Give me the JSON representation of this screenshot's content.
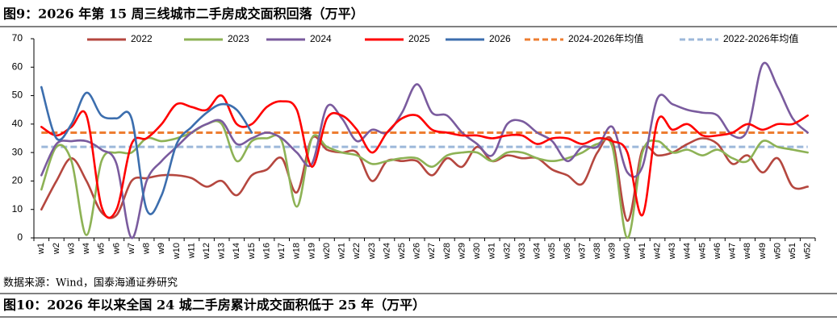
{
  "chart_data": {
    "type": "line",
    "title": "图9：2026 年第 15 周三线城市二手房成交面积回落（万平）",
    "categories": [
      "w1",
      "w2",
      "w3",
      "w4",
      "w5",
      "w6",
      "w7",
      "w8",
      "w9",
      "w10",
      "w11",
      "w12",
      "w13",
      "w14",
      "w15",
      "w16",
      "w17",
      "w18",
      "w19",
      "w20",
      "w21",
      "w22",
      "w23",
      "w24",
      "w25",
      "w26",
      "w27",
      "w28",
      "w29",
      "w30",
      "w31",
      "w32",
      "w33",
      "w34",
      "w35",
      "w36",
      "w37",
      "w38",
      "w39",
      "w40",
      "w41",
      "w42",
      "w43",
      "w44",
      "w45",
      "w46",
      "w47",
      "w48",
      "w49",
      "w50",
      "w51",
      "w52"
    ],
    "series": [
      {
        "name": "2022",
        "color": "#b5473f",
        "values": [
          10,
          20,
          28,
          20,
          9,
          8,
          20,
          21,
          22,
          22,
          21,
          18,
          20,
          15,
          22,
          24,
          28,
          16,
          35,
          31,
          30,
          30,
          20,
          27,
          27,
          27,
          22,
          28,
          25,
          32,
          27,
          29,
          28,
          28,
          24,
          22,
          19,
          30,
          34,
          6,
          31,
          29,
          30,
          33,
          35,
          33,
          26,
          29,
          23,
          28,
          18,
          18
        ]
      },
      {
        "name": "2023",
        "color": "#8db255",
        "values": [
          17,
          32,
          27,
          1,
          27,
          30,
          30,
          35,
          34,
          35,
          37,
          40,
          40,
          27,
          34,
          35,
          34,
          11,
          35,
          32,
          30,
          29,
          26,
          27,
          28,
          28,
          25,
          29,
          30,
          30,
          27,
          30,
          30,
          28,
          27,
          28,
          30,
          33,
          32,
          0,
          30,
          34,
          30,
          31,
          29,
          31,
          28,
          27,
          34,
          32,
          31,
          30
        ]
      },
      {
        "name": "2024",
        "color": "#7a5b9e",
        "values": [
          22,
          33,
          34,
          34,
          31,
          26,
          0,
          20,
          27,
          32,
          37,
          40,
          41,
          33,
          35,
          37,
          35,
          30,
          26,
          46,
          42,
          34,
          38,
          37,
          44,
          54,
          44,
          43,
          37,
          33,
          29,
          40,
          41,
          37,
          34,
          27,
          32,
          32,
          39,
          23,
          25,
          49,
          47,
          45,
          44,
          43,
          36,
          38,
          61,
          53,
          42,
          37
        ]
      },
      {
        "name": "2025",
        "color": "#ff0000",
        "values": [
          39,
          36,
          39,
          43,
          11,
          10,
          33,
          35,
          40,
          47,
          46,
          45,
          50,
          40,
          40,
          46,
          48,
          45,
          25,
          42,
          43,
          38,
          30,
          37,
          42,
          43,
          38,
          37,
          36,
          36,
          35,
          36,
          36,
          33,
          35,
          35,
          33,
          35,
          34,
          30,
          8,
          41,
          38,
          40,
          36,
          36,
          37,
          40,
          38,
          40,
          40,
          43
        ]
      },
      {
        "name": "2026",
        "color": "#3c6eae",
        "values": [
          53,
          35,
          40,
          51,
          43,
          42,
          42,
          10,
          15,
          33,
          39,
          44,
          47,
          45,
          37,
          null,
          null,
          null,
          null,
          null,
          null,
          null,
          null,
          null,
          null,
          null,
          null,
          null,
          null,
          null,
          null,
          null,
          null,
          null,
          null,
          null,
          null,
          null,
          null,
          null,
          null,
          null,
          null,
          null,
          null,
          null,
          null,
          null,
          null,
          null,
          null,
          null
        ]
      }
    ],
    "reference_lines": [
      {
        "name": "2024-2026年均值",
        "color": "#ed7d31",
        "value": 37
      },
      {
        "name": "2022-2026年均值",
        "color": "#9db8da",
        "value": 32
      }
    ],
    "ylim": [
      0,
      70
    ],
    "yticks": [
      0,
      10,
      20,
      30,
      40,
      50,
      60,
      70
    ],
    "grid": false
  },
  "source": "数据来源：Wind，国泰海通证券研究",
  "next_title": "图10：2026 年以来全国 24 城二手房累计成交面积低于 25 年（万平）"
}
